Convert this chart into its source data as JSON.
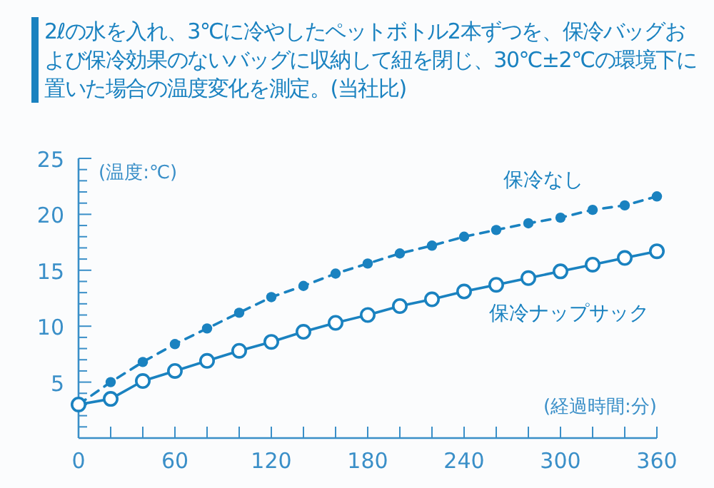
{
  "chart_data": {
    "type": "line",
    "title": "2ℓの水を入れ、3℃に冷やしたペットボトル2本ずつを、保冷バッグおよび保冷効果のないバッグに収納して紐を閉じ、30℃±2℃の環境下に置いた場合の温度変化を測定。(当社比)",
    "xlabel": "(経過時間:分)",
    "ylabel": "(温度:℃)",
    "x": [
      0,
      20,
      40,
      60,
      80,
      100,
      120,
      140,
      160,
      180,
      200,
      220,
      240,
      260,
      280,
      300,
      320,
      340,
      360
    ],
    "series": [
      {
        "name": "保冷なし",
        "color": "#1a82c0",
        "line_style": "dashed",
        "values": [
          3.0,
          5.0,
          6.8,
          8.4,
          9.8,
          11.2,
          12.6,
          13.6,
          14.7,
          15.6,
          16.5,
          17.2,
          18.0,
          18.6,
          19.2,
          19.7,
          20.4,
          20.8,
          21.6
        ]
      },
      {
        "name": "保冷ナップサック",
        "color": "#1a82c0",
        "line_style": "solid",
        "values": [
          3.0,
          3.5,
          5.1,
          6.0,
          6.9,
          7.8,
          8.6,
          9.5,
          10.3,
          11.0,
          11.8,
          12.4,
          13.1,
          13.7,
          14.3,
          14.9,
          15.5,
          16.1,
          16.7
        ]
      }
    ],
    "xlim": [
      0,
      360
    ],
    "xticks": [
      0,
      {
        "value": 20,
        "label": null
      },
      {
        "value": 40,
        "label": null
      },
      60,
      {
        "value": 80,
        "label": null
      },
      {
        "value": 100,
        "label": null
      },
      120,
      {
        "value": 140,
        "label": null
      },
      {
        "value": 160,
        "label": null
      },
      180,
      {
        "value": 200,
        "label": null
      },
      {
        "value": 220,
        "label": null
      },
      240,
      {
        "value": 260,
        "label": null
      },
      {
        "value": 280,
        "label": null
      },
      300,
      {
        "value": 320,
        "label": null
      },
      {
        "value": 340,
        "label": null
      },
      360
    ],
    "ylim": [
      0,
      25
    ],
    "yticks": [
      {
        "value": 0,
        "label": null
      },
      {
        "value": 1,
        "label": null
      },
      {
        "value": 2,
        "label": null
      },
      {
        "value": 3,
        "label": null
      },
      {
        "value": 4,
        "label": null
      },
      5,
      {
        "value": 6,
        "label": null
      },
      {
        "value": 7,
        "label": null
      },
      {
        "value": 8,
        "label": null
      },
      {
        "value": 9,
        "label": null
      },
      10,
      {
        "value": 11,
        "label": null
      },
      {
        "value": 12,
        "label": null
      },
      {
        "value": 13,
        "label": null
      },
      {
        "value": 14,
        "label": null
      },
      15,
      {
        "value": 16,
        "label": null
      },
      {
        "value": 17,
        "label": null
      },
      {
        "value": 18,
        "label": null
      },
      {
        "value": 19,
        "label": null
      },
      20,
      {
        "value": 21,
        "label": null
      },
      {
        "value": 22,
        "label": null
      },
      {
        "value": 23,
        "label": null
      },
      {
        "value": 24,
        "label": null
      },
      25
    ],
    "marker": "circle",
    "grid": false
  }
}
